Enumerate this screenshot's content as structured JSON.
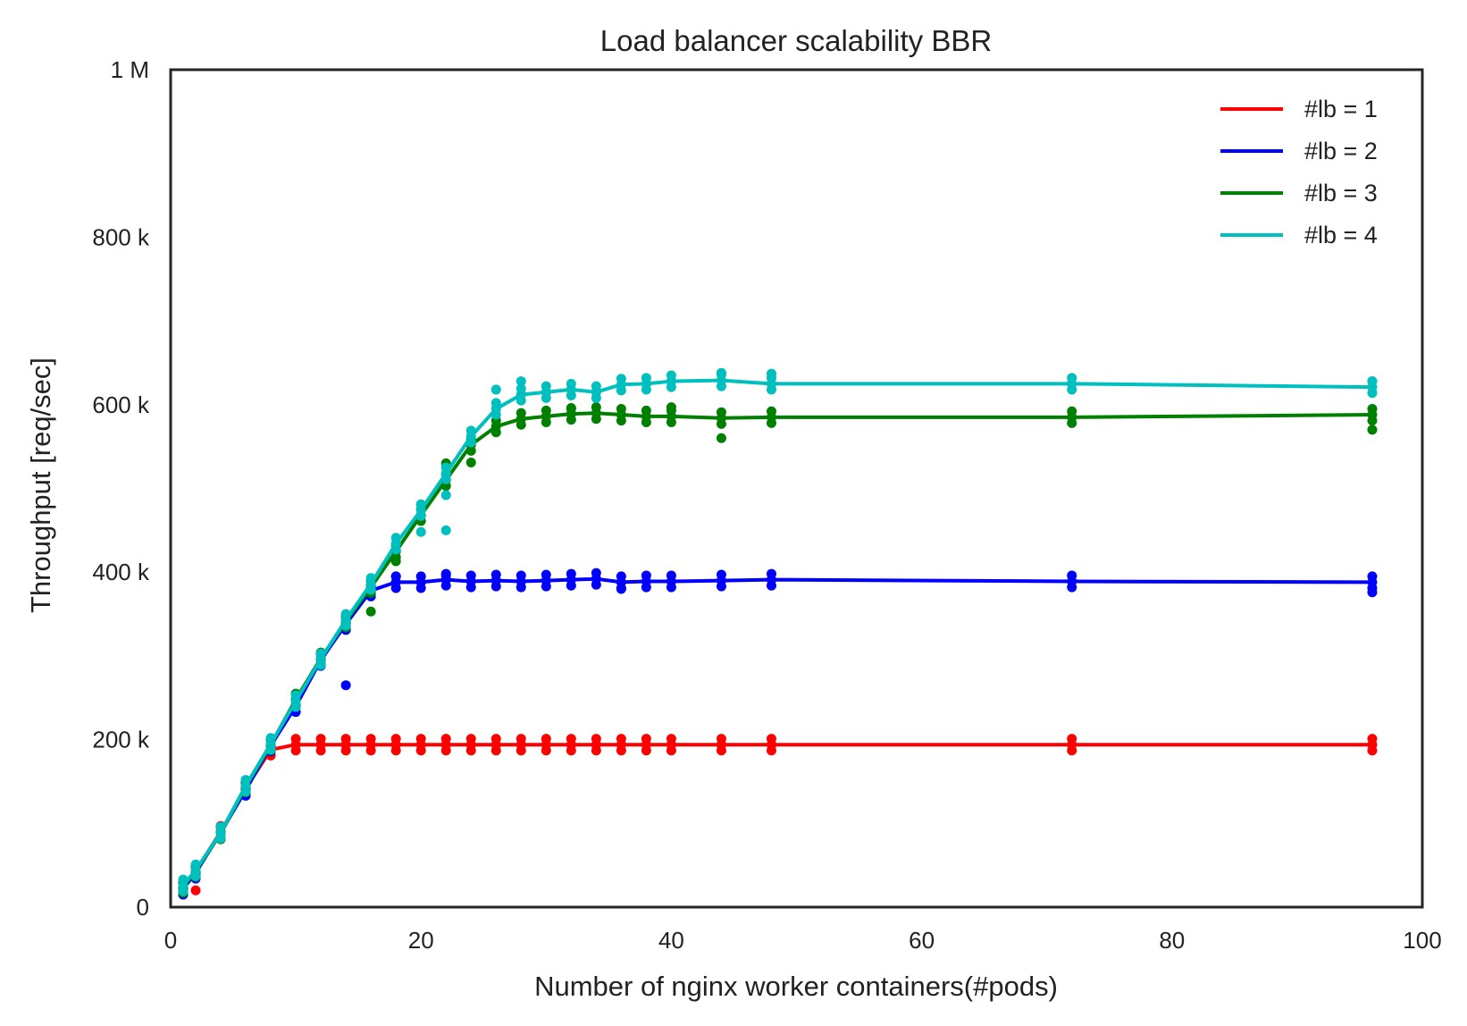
{
  "chart_data": {
    "type": "line",
    "title": "Load balancer scalability BBR",
    "xlabel": "Number of nginx worker containers(#pods)",
    "ylabel": "Throughput [req/sec]",
    "xlim": [
      0,
      100
    ],
    "ylim": [
      0,
      1000000
    ],
    "x_ticks": [
      0,
      20,
      40,
      60,
      80,
      100
    ],
    "x_tick_labels": [
      "0",
      "20",
      "40",
      "60",
      "80",
      "100"
    ],
    "y_ticks": [
      0,
      200000,
      400000,
      600000,
      800000,
      1000000
    ],
    "y_tick_labels": [
      "0",
      "200 k",
      "400 k",
      "600 k",
      "800 k",
      "1 M"
    ],
    "grid": false,
    "legend_position": "top-right",
    "x": [
      1,
      2,
      4,
      6,
      8,
      10,
      12,
      14,
      16,
      18,
      20,
      22,
      24,
      26,
      28,
      30,
      32,
      34,
      36,
      38,
      40,
      44,
      48,
      72,
      96
    ],
    "series": [
      {
        "name": "#lb = 1",
        "color": "#ff0000",
        "values": [
          22000,
          43000,
          90000,
          142000,
          188000,
          194000,
          194000,
          194000,
          194000,
          194000,
          194000,
          194000,
          194000,
          194000,
          194000,
          194000,
          194000,
          194000,
          194000,
          194000,
          194000,
          194000,
          194000,
          194000,
          194000
        ],
        "extra_points": [
          [
            2,
            20000
          ],
          [
            1,
            18000
          ]
        ]
      },
      {
        "name": "#lb = 2",
        "color": "#0000ff",
        "values": [
          22000,
          41000,
          89000,
          140000,
          193000,
          240000,
          295000,
          338000,
          378000,
          388000,
          388000,
          391000,
          389000,
          390000,
          389000,
          390000,
          391000,
          392000,
          388000,
          389000,
          389000,
          390000,
          391000,
          389000,
          388000
        ],
        "extra_points": [
          [
            14,
            265000
          ],
          [
            36,
            380000
          ],
          [
            96,
            376000
          ],
          [
            18,
            395000
          ],
          [
            22,
            396000
          ],
          [
            2,
            38000
          ]
        ]
      },
      {
        "name": "#lb = 3",
        "color": "#008000",
        "values": [
          24000,
          43000,
          88000,
          144000,
          194000,
          248000,
          297000,
          341000,
          382000,
          425000,
          468000,
          510000,
          552000,
          574000,
          583000,
          586000,
          589000,
          590000,
          588000,
          586000,
          586000,
          584000,
          585000,
          585000,
          588000
        ],
        "extra_points": [
          [
            16,
            353000
          ],
          [
            18,
            413000
          ],
          [
            22,
            530000
          ],
          [
            24,
            531000
          ],
          [
            44,
            560000
          ],
          [
            96,
            570000
          ],
          [
            40,
            597000
          ],
          [
            32,
            595000
          ]
        ]
      },
      {
        "name": "#lb = 4",
        "color": "#00bfbf",
        "values": [
          26000,
          44000,
          89000,
          145000,
          195000,
          246000,
          296000,
          343000,
          386000,
          434000,
          474000,
          518000,
          562000,
          595000,
          612000,
          615000,
          618000,
          615000,
          624000,
          625000,
          628000,
          629000,
          625000,
          625000,
          621000
        ],
        "extra_points": [
          [
            22,
            450000
          ],
          [
            20,
            448000
          ],
          [
            26,
            618000
          ],
          [
            28,
            628000
          ],
          [
            48,
            637000
          ],
          [
            44,
            638000
          ],
          [
            96,
            628000
          ],
          [
            22,
            492000
          ]
        ]
      }
    ]
  }
}
